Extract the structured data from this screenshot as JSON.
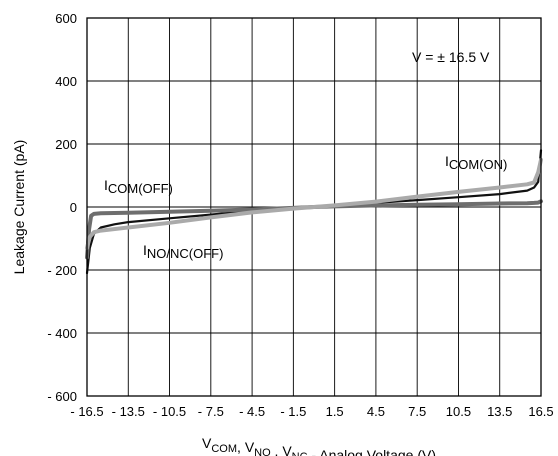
{
  "chart_data": {
    "type": "line",
    "title": "",
    "annotation_text": "V = ± 16.5 V",
    "xlabel_parts": [
      {
        "base": "V",
        "sub": "COM"
      },
      {
        "text": ", "
      },
      {
        "base": "V",
        "sub": "NO"
      },
      {
        "text": " , "
      },
      {
        "base": "V",
        "sub": "NC"
      },
      {
        "text": " - Analog Voltage (V)"
      }
    ],
    "ylabel": "Leakage Current (pA)",
    "xlim": [
      -16.5,
      16.5
    ],
    "ylim": [
      -600,
      600
    ],
    "x_ticks": [
      -16.5,
      -13.5,
      -10.5,
      -7.5,
      -4.5,
      -1.5,
      1.5,
      4.5,
      7.5,
      10.5,
      13.5,
      16.5
    ],
    "x_tick_labels": [
      "- 16.5",
      "- 13.5",
      "- 10.5",
      "- 7.5",
      "- 4.5",
      "- 1.5",
      "1.5",
      "4.5",
      "7.5",
      "10.5",
      "13.5",
      "16.5"
    ],
    "y_ticks": [
      600,
      400,
      200,
      0,
      -200,
      -400,
      -600
    ],
    "y_tick_labels": [
      "600",
      "400",
      "200",
      "0",
      "- 200",
      "- 400",
      "- 600"
    ],
    "grid": true,
    "series": [
      {
        "name_base": "I",
        "name_sub": "NO/NC(OFF)",
        "color": "#111111",
        "width": 2.2,
        "x": [
          -16.5,
          -16.3,
          -16.0,
          -15.5,
          -14.5,
          -13.5,
          -10.5,
          -7.5,
          -4.5,
          -1.5,
          0,
          1.5,
          4.5,
          7.5,
          10.5,
          13.5,
          15.5,
          16.0,
          16.3,
          16.5
        ],
        "y": [
          -210,
          -130,
          -85,
          -65,
          -55,
          -48,
          -36,
          -24,
          -12,
          -3,
          0,
          4,
          13,
          22,
          31,
          41,
          52,
          62,
          80,
          180
        ]
      },
      {
        "name_base": "I",
        "name_sub": "COM(OFF)",
        "color": "#6e6e6e",
        "width": 4,
        "x": [
          -16.5,
          -16.35,
          -16.2,
          -16.0,
          -15.5,
          -13.5,
          -10.5,
          -7.5,
          -4.5,
          -1.5,
          0,
          1.5,
          4.5,
          7.5,
          10.5,
          13.5,
          15.5,
          16.0,
          16.3,
          16.5
        ],
        "y": [
          -160,
          -70,
          -28,
          -22,
          -20,
          -18,
          -15,
          -12,
          -8,
          -3,
          0,
          2,
          5,
          7,
          9,
          11,
          12,
          13,
          14,
          18
        ]
      },
      {
        "name_base": "I",
        "name_sub": "COM(ON)",
        "color": "#aaaaaa",
        "width": 4,
        "x": [
          -16.5,
          -16.3,
          -16.0,
          -15.5,
          -13.5,
          -10.5,
          -7.5,
          -4.5,
          -1.5,
          0,
          1.5,
          4.5,
          7.5,
          10.5,
          13.5,
          15.5,
          16.0,
          16.3,
          16.5
        ],
        "y": [
          -130,
          -95,
          -80,
          -75,
          -65,
          -50,
          -33,
          -17,
          -5,
          0,
          5,
          17,
          33,
          48,
          62,
          72,
          78,
          110,
          150
        ]
      }
    ]
  }
}
